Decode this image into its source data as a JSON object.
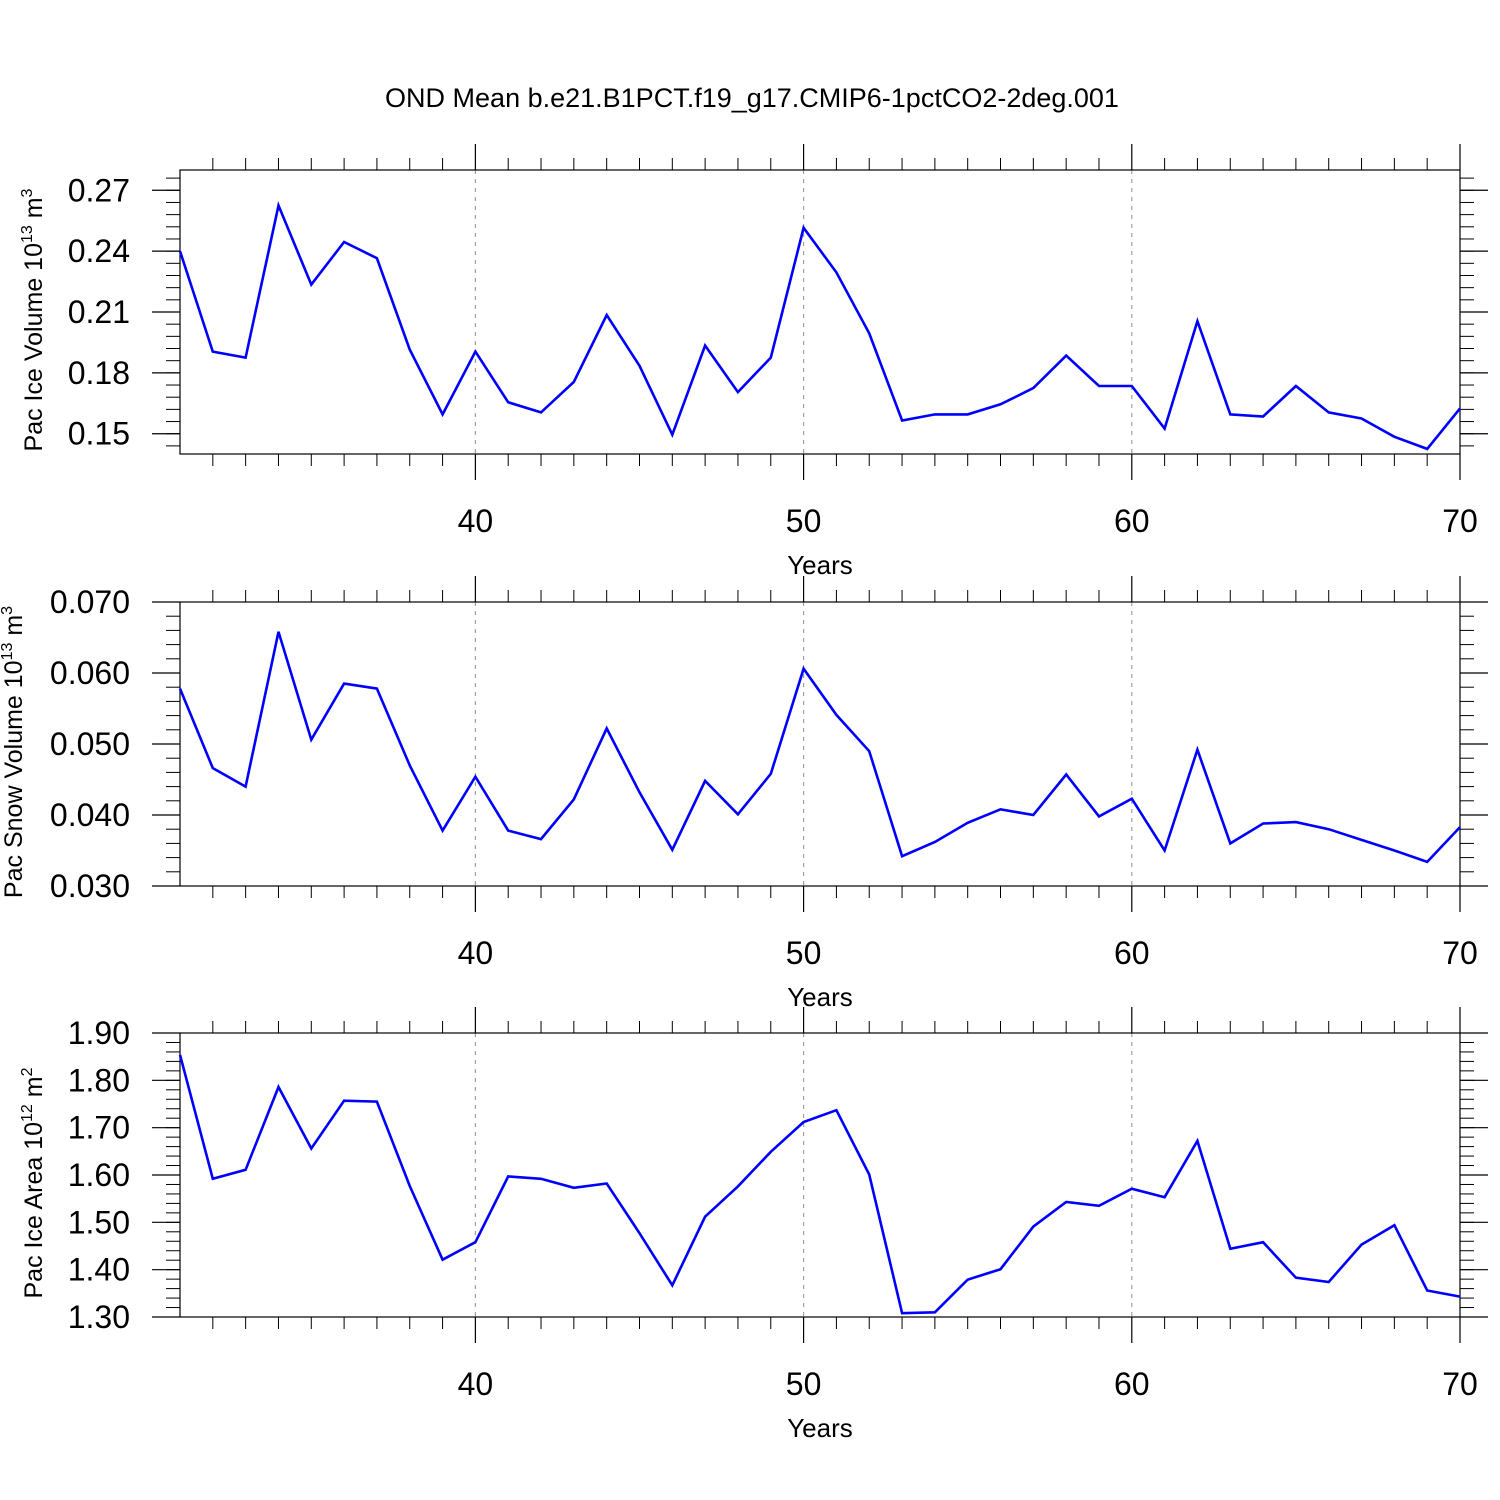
{
  "title": "OND Mean b.e21.B1PCT.f19_g17.CMIP6-1pctCO2-2deg.001",
  "colors": {
    "line": "#0000ff",
    "grid": "#a0a0a0",
    "axis": "#000000"
  },
  "chart_data": [
    {
      "type": "line",
      "ylabel_main": "Pac Ice Volume 10",
      "ylabel_exp": "13",
      "ylabel_unit": " m",
      "ylabel_unit_exp": "3",
      "xlabel": "Years",
      "xlim": [
        31,
        70
      ],
      "ylim": [
        0.14,
        0.28
      ],
      "x_major_ticks": [
        40,
        50,
        60,
        70
      ],
      "x_major_tick_labels": [
        "40",
        "50",
        "60",
        "70"
      ],
      "x_minor_step": 1,
      "y_major_ticks": [
        0.15,
        0.18,
        0.21,
        0.24,
        0.27
      ],
      "y_major_tick_labels": [
        "0.15",
        "0.18",
        "0.21",
        "0.24",
        "0.27"
      ],
      "y_minor_step": 0.006,
      "y_minor_start": 0.144,
      "grid": "dashed vertical at major x ticks",
      "series": [
        {
          "x": [
            31,
            32,
            33,
            34,
            35,
            36,
            37,
            38,
            39,
            40,
            41,
            42,
            43,
            44,
            45,
            46,
            47,
            48,
            49,
            50,
            51,
            52,
            53,
            54,
            55,
            56,
            57,
            58,
            59,
            60,
            61,
            62,
            63,
            64,
            65,
            66,
            67,
            68,
            69,
            70
          ],
          "values": [
            0.24,
            0.1905,
            0.1875,
            0.2625,
            0.2235,
            0.2445,
            0.2365,
            0.1915,
            0.1595,
            0.1905,
            0.1655,
            0.1605,
            0.1755,
            0.2085,
            0.1835,
            0.1495,
            0.1935,
            0.1705,
            0.1875,
            0.2515,
            0.2295,
            0.1995,
            0.1565,
            0.1595,
            0.1595,
            0.1645,
            0.1725,
            0.1885,
            0.1735,
            0.1735,
            0.1525,
            0.2055,
            0.1595,
            0.1585,
            0.1735,
            0.1605,
            0.1575,
            0.1485,
            0.1425,
            0.1625
          ]
        }
      ]
    },
    {
      "type": "line",
      "ylabel_main": "Pac Snow Volume 10",
      "ylabel_exp": "13",
      "ylabel_unit": " m",
      "ylabel_unit_exp": "3",
      "xlabel": "Years",
      "xlim": [
        31,
        70
      ],
      "ylim": [
        0.03,
        0.07
      ],
      "x_major_ticks": [
        40,
        50,
        60,
        70
      ],
      "x_major_tick_labels": [
        "40",
        "50",
        "60",
        "70"
      ],
      "x_minor_step": 1,
      "y_major_ticks": [
        0.03,
        0.04,
        0.05,
        0.06,
        0.07
      ],
      "y_major_tick_labels": [
        "0.030",
        "0.040",
        "0.050",
        "0.060",
        "0.070"
      ],
      "y_minor_step": 0.002,
      "y_minor_start": 0.03,
      "grid": "dashed vertical at major x ticks",
      "series": [
        {
          "x": [
            31,
            32,
            33,
            34,
            35,
            36,
            37,
            38,
            39,
            40,
            41,
            42,
            43,
            44,
            45,
            46,
            47,
            48,
            49,
            50,
            51,
            52,
            53,
            54,
            55,
            56,
            57,
            58,
            59,
            60,
            61,
            62,
            63,
            64,
            65,
            66,
            67,
            68,
            69,
            70
          ],
          "values": [
            0.0578,
            0.0466,
            0.044,
            0.0658,
            0.0506,
            0.0585,
            0.0578,
            0.047,
            0.0378,
            0.0454,
            0.0378,
            0.0366,
            0.0422,
            0.0522,
            0.0432,
            0.0351,
            0.0448,
            0.0401,
            0.0458,
            0.0606,
            0.0541,
            0.049,
            0.0342,
            0.0362,
            0.0389,
            0.0408,
            0.04,
            0.0457,
            0.0398,
            0.0423,
            0.035,
            0.0492,
            0.036,
            0.0388,
            0.039,
            0.038,
            0.0365,
            0.035,
            0.0334,
            0.0383
          ]
        }
      ]
    },
    {
      "type": "line",
      "ylabel_main": "Pac Ice Area 10",
      "ylabel_exp": "12",
      "ylabel_unit": " m",
      "ylabel_unit_exp": "2",
      "xlabel": "Years",
      "xlim": [
        31,
        70
      ],
      "ylim": [
        1.3,
        1.9
      ],
      "x_major_ticks": [
        40,
        50,
        60,
        70
      ],
      "x_major_tick_labels": [
        "40",
        "50",
        "60",
        "70"
      ],
      "x_minor_step": 1,
      "y_major_ticks": [
        1.3,
        1.4,
        1.5,
        1.6,
        1.7,
        1.8,
        1.9
      ],
      "y_major_tick_labels": [
        "1.30",
        "1.40",
        "1.50",
        "1.60",
        "1.70",
        "1.80",
        "1.90"
      ],
      "y_minor_step": 0.02,
      "y_minor_start": 1.3,
      "grid": "dashed vertical at major x ticks",
      "series": [
        {
          "x": [
            31,
            32,
            33,
            34,
            35,
            36,
            37,
            38,
            39,
            40,
            41,
            42,
            43,
            44,
            45,
            46,
            47,
            48,
            49,
            50,
            51,
            52,
            53,
            54,
            55,
            56,
            57,
            58,
            59,
            60,
            61,
            62,
            63,
            64,
            65,
            66,
            67,
            68,
            69,
            70
          ],
          "values": [
            1.854,
            1.592,
            1.611,
            1.786,
            1.656,
            1.757,
            1.755,
            1.577,
            1.421,
            1.458,
            1.597,
            1.592,
            1.573,
            1.582,
            1.477,
            1.367,
            1.512,
            1.576,
            1.649,
            1.712,
            1.737,
            1.601,
            1.308,
            1.31,
            1.379,
            1.401,
            1.491,
            1.543,
            1.535,
            1.571,
            1.553,
            1.672,
            1.444,
            1.458,
            1.383,
            1.374,
            1.453,
            1.494,
            1.356,
            1.343
          ]
        }
      ]
    }
  ]
}
